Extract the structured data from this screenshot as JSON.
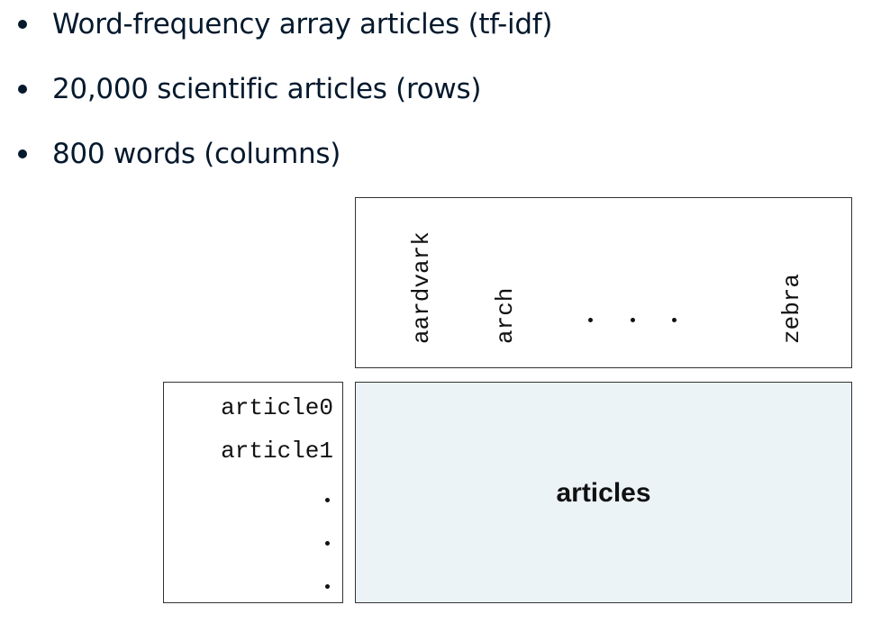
{
  "bullets": [
    "Word-frequency array articles (tf-idf)",
    "20,000 scientific articles (rows)",
    "800 words (columns)"
  ],
  "diagram": {
    "columns": [
      "aardvark",
      "arch",
      "zebra"
    ],
    "rows": [
      "article0",
      "article1"
    ],
    "matrix_label": "articles"
  }
}
